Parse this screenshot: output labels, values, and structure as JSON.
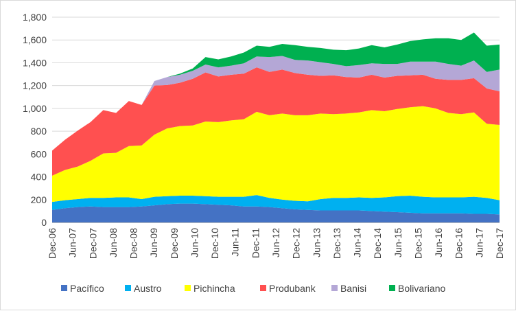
{
  "chart_data": {
    "type": "area",
    "stacked": true,
    "title": "",
    "xlabel": "",
    "ylabel": "",
    "ylim": [
      0,
      1800
    ],
    "yticks": [
      0,
      200,
      400,
      600,
      800,
      1000,
      1200,
      1400,
      1600,
      1800
    ],
    "ytick_labels": [
      "0",
      "200",
      "400",
      "600",
      "800",
      "1,000",
      "1,200",
      "1,400",
      "1,600",
      "1,800"
    ],
    "x_tick_labels": [
      "Dec-06",
      "Jun-07",
      "Dec-07",
      "Jun-08",
      "Dec-08",
      "Jun-09",
      "Dec-09",
      "Jun-10",
      "Dec-10",
      "Jun-11",
      "Dec-11",
      "Jun-12",
      "Dec-12",
      "Jun-13",
      "Dec-13",
      "Jun-14",
      "Dec-14",
      "Jun-15",
      "Dec-15",
      "Jun-16",
      "Dec-16",
      "Jun-17",
      "Dec-17"
    ],
    "legend_position": "bottom",
    "series": [
      {
        "name": "Pacífico",
        "color": "#4472c4",
        "values": [
          110,
          125,
          135,
          140,
          135,
          135,
          135,
          140,
          150,
          160,
          165,
          165,
          160,
          155,
          150,
          140,
          140,
          135,
          125,
          115,
          110,
          105,
          105,
          105,
          105,
          100,
          95,
          90,
          85,
          80,
          80,
          80,
          80,
          75,
          75,
          70
        ]
      },
      {
        "name": "Austro",
        "color": "#00b0f0",
        "values": [
          70,
          70,
          70,
          75,
          80,
          85,
          85,
          65,
          75,
          70,
          70,
          70,
          70,
          70,
          75,
          85,
          100,
          80,
          75,
          75,
          75,
          100,
          110,
          110,
          115,
          115,
          125,
          140,
          150,
          145,
          140,
          140,
          140,
          150,
          140,
          125
        ]
      },
      {
        "name": "Pichincha",
        "color": "#ffff00",
        "values": [
          230,
          265,
          285,
          325,
          390,
          390,
          450,
          470,
          545,
          595,
          610,
          615,
          655,
          655,
          670,
          680,
          730,
          725,
          755,
          750,
          755,
          750,
          735,
          740,
          745,
          770,
          755,
          765,
          775,
          795,
          780,
          740,
          730,
          740,
          650,
          660
        ]
      },
      {
        "name": "Produbank",
        "color": "#ff5050",
        "values": [
          220,
          265,
          315,
          340,
          380,
          350,
          395,
          355,
          430,
          380,
          380,
          410,
          430,
          400,
          400,
          400,
          390,
          380,
          385,
          370,
          355,
          330,
          340,
          320,
          305,
          310,
          295,
          290,
          280,
          275,
          260,
          290,
          300,
          300,
          310,
          295
        ]
      },
      {
        "name": "Banisi",
        "color": "#b4a7d6",
        "values": [
          0,
          0,
          0,
          0,
          0,
          0,
          0,
          0,
          40,
          70,
          70,
          70,
          70,
          80,
          80,
          90,
          95,
          130,
          120,
          115,
          125,
          120,
          100,
          95,
          110,
          100,
          120,
          105,
          120,
          115,
          150,
          140,
          125,
          155,
          145,
          190
        ]
      },
      {
        "name": "Bolivariano",
        "color": "#00b050",
        "values": [
          0,
          0,
          0,
          0,
          0,
          0,
          0,
          0,
          0,
          0,
          10,
          20,
          65,
          70,
          80,
          95,
          95,
          90,
          105,
          130,
          120,
          125,
          125,
          140,
          145,
          160,
          145,
          170,
          180,
          195,
          205,
          225,
          225,
          245,
          230,
          220
        ]
      }
    ]
  }
}
